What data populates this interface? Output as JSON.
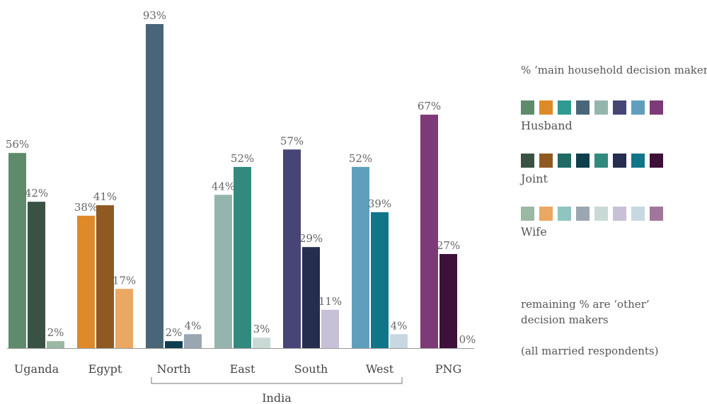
{
  "chart_data": {
    "type": "bar",
    "ylim": [
      0,
      100
    ],
    "groups": [
      {
        "label": "Uganda",
        "values": [
          56,
          42,
          2
        ],
        "colors": [
          "#5f8a6c",
          "#3a5243",
          "#9cb7a4"
        ]
      },
      {
        "label": "Egypt",
        "values": [
          38,
          41,
          17
        ],
        "colors": [
          "#df8a28",
          "#8e5a22",
          "#eaa862"
        ]
      },
      {
        "label": "North",
        "values": [
          93,
          2,
          4
        ],
        "colors": [
          "#486678",
          "#0f3f4c",
          "#9aa6b2"
        ]
      },
      {
        "label": "East",
        "values": [
          44,
          52,
          3
        ],
        "colors": [
          "#94b5ad",
          "#328a7e",
          "#c9dad6"
        ]
      },
      {
        "label": "South",
        "values": [
          57,
          29,
          11
        ],
        "colors": [
          "#464576",
          "#252e4e",
          "#c7c0d6"
        ]
      },
      {
        "label": "West",
        "values": [
          52,
          39,
          4
        ],
        "colors": [
          "#5f9fbd",
          "#11758a",
          "#c7d8e2"
        ]
      },
      {
        "label": "PNG",
        "values": [
          67,
          27,
          0
        ],
        "colors": [
          "#7d3a78",
          "#3d1139",
          "#a2759b"
        ]
      }
    ],
    "bracket_label": "India"
  },
  "legend": {
    "title": "% ‘main household decision maker’",
    "rows": [
      {
        "label": "Husband",
        "colors": [
          "#5f8a6c",
          "#df8a28",
          "#2f9a91",
          "#486678",
          "#94b5ad",
          "#464576",
          "#5f9fbd",
          "#7d3a78"
        ]
      },
      {
        "label": "Joint",
        "colors": [
          "#3a5243",
          "#8e5a22",
          "#1f6a63",
          "#0f3f4c",
          "#328a7e",
          "#252e4e",
          "#11758a",
          "#3d1139"
        ]
      },
      {
        "label": "Wife",
        "colors": [
          "#9cb7a4",
          "#eaa862",
          "#8fc4c0",
          "#9aa6b2",
          "#c9dad6",
          "#c7c0d6",
          "#c7d8e2",
          "#a2759b"
        ]
      }
    ],
    "note": "remaining % are ‘other’ decision makers",
    "subnote": "(all married respondents)"
  }
}
